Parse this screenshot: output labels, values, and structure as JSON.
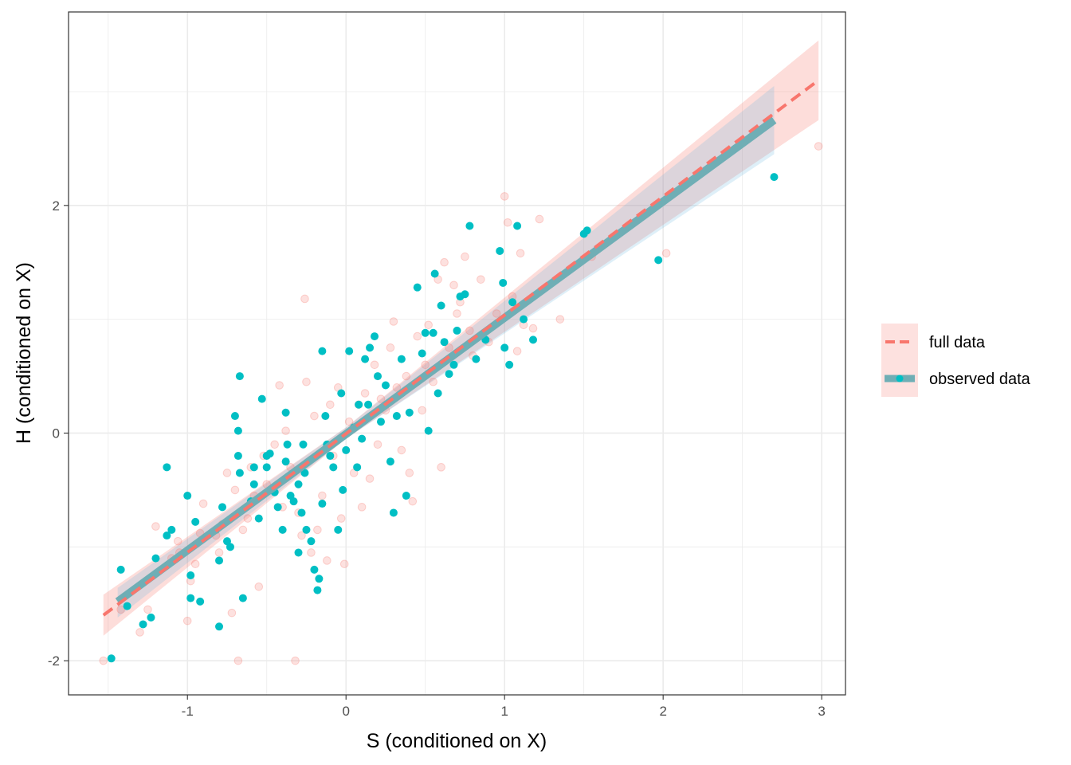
{
  "chart_data": {
    "type": "scatter",
    "xlabel": "S (conditioned on X)",
    "ylabel": "H (conditioned on X)",
    "xlim": [
      -1.75,
      3.15
    ],
    "ylim": [
      -2.3,
      3.7
    ],
    "x_ticks": [
      -1,
      0,
      1,
      2,
      3
    ],
    "y_ticks": [
      -2,
      0,
      2
    ],
    "x_tick_labels": [
      "-1",
      "0",
      "1",
      "2",
      "3"
    ],
    "y_tick_labels": [
      "-2",
      "0",
      "2"
    ],
    "grid": true,
    "legend_position": "right",
    "colors": {
      "full": "#F8766D",
      "observed": "#00BFC4",
      "observed_line": "#6FAEB5"
    },
    "series": [
      {
        "name": "full data",
        "style": "dashed line with confidence band, faint points",
        "line": {
          "x": [
            -1.53,
            2.98
          ],
          "y": [
            -1.6,
            3.1
          ]
        },
        "band": {
          "x": [
            -1.53,
            0.0,
            2.98
          ],
          "upper": [
            -1.42,
            0.05,
            3.45
          ],
          "lower": [
            -1.78,
            -0.05,
            2.75
          ]
        },
        "points": [
          [
            -1.53,
            -2.0
          ],
          [
            -1.42,
            -1.55
          ],
          [
            -1.3,
            -1.75
          ],
          [
            -1.25,
            -1.55
          ],
          [
            -1.2,
            -0.82
          ],
          [
            -1.1,
            -1.1
          ],
          [
            -1.05,
            -1.05
          ],
          [
            -1.06,
            -0.95
          ],
          [
            -1.0,
            -1.65
          ],
          [
            -0.98,
            -1.3
          ],
          [
            -0.95,
            -1.15
          ],
          [
            -0.92,
            -0.88
          ],
          [
            -0.9,
            -0.62
          ],
          [
            -0.82,
            -0.9
          ],
          [
            -0.8,
            -1.05
          ],
          [
            -0.78,
            -0.8
          ],
          [
            -0.75,
            -0.35
          ],
          [
            -0.72,
            -1.58
          ],
          [
            -0.7,
            -0.5
          ],
          [
            -0.68,
            -2.0
          ],
          [
            -0.65,
            -0.85
          ],
          [
            -0.62,
            -0.75
          ],
          [
            -0.6,
            -0.3
          ],
          [
            -0.58,
            -0.55
          ],
          [
            -0.55,
            -1.35
          ],
          [
            -0.52,
            -0.2
          ],
          [
            -0.5,
            -0.45
          ],
          [
            -0.45,
            -0.1
          ],
          [
            -0.42,
            0.42
          ],
          [
            -0.4,
            -0.65
          ],
          [
            -0.38,
            0.02
          ],
          [
            -0.35,
            -0.3
          ],
          [
            -0.32,
            -2.0
          ],
          [
            -0.3,
            -0.7
          ],
          [
            -0.28,
            -0.9
          ],
          [
            -0.26,
            1.18
          ],
          [
            -0.25,
            0.45
          ],
          [
            -0.22,
            -1.05
          ],
          [
            -0.2,
            0.15
          ],
          [
            -0.18,
            -0.85
          ],
          [
            -0.15,
            -0.55
          ],
          [
            -0.12,
            -1.12
          ],
          [
            -0.1,
            0.25
          ],
          [
            -0.08,
            -0.2
          ],
          [
            -0.05,
            0.4
          ],
          [
            -0.03,
            -0.75
          ],
          [
            -0.01,
            -1.15
          ],
          [
            0.02,
            0.1
          ],
          [
            0.05,
            -0.35
          ],
          [
            0.08,
            0.25
          ],
          [
            0.1,
            -0.65
          ],
          [
            0.12,
            0.35
          ],
          [
            0.15,
            -0.4
          ],
          [
            0.18,
            0.6
          ],
          [
            0.2,
            -0.1
          ],
          [
            0.22,
            0.3
          ],
          [
            0.25,
            0.2
          ],
          [
            0.28,
            0.75
          ],
          [
            0.3,
            0.98
          ],
          [
            0.32,
            0.4
          ],
          [
            0.35,
            -0.15
          ],
          [
            0.38,
            0.5
          ],
          [
            0.4,
            -0.35
          ],
          [
            0.42,
            -0.6
          ],
          [
            0.45,
            0.85
          ],
          [
            0.48,
            0.2
          ],
          [
            0.5,
            0.6
          ],
          [
            0.52,
            0.95
          ],
          [
            0.55,
            0.45
          ],
          [
            0.58,
            1.35
          ],
          [
            0.6,
            -0.3
          ],
          [
            0.62,
            1.5
          ],
          [
            0.65,
            0.75
          ],
          [
            0.68,
            1.3
          ],
          [
            0.7,
            1.05
          ],
          [
            0.72,
            1.15
          ],
          [
            0.75,
            1.55
          ],
          [
            0.78,
            0.9
          ],
          [
            0.8,
            0.68
          ],
          [
            0.85,
            1.35
          ],
          [
            0.9,
            0.8
          ],
          [
            0.95,
            1.05
          ],
          [
            1.0,
            2.08
          ],
          [
            1.02,
            1.85
          ],
          [
            1.05,
            1.2
          ],
          [
            1.08,
            0.72
          ],
          [
            1.1,
            1.58
          ],
          [
            1.12,
            0.95
          ],
          [
            1.18,
            0.92
          ],
          [
            1.22,
            1.88
          ],
          [
            1.35,
            1.0
          ],
          [
            1.55,
            1.55
          ],
          [
            2.02,
            1.58
          ],
          [
            2.98,
            2.52
          ]
        ]
      },
      {
        "name": "observed data",
        "style": "solid thick line with confidence band, solid points",
        "line": {
          "x": [
            -1.44,
            2.7
          ],
          "y": [
            -1.48,
            2.75
          ]
        },
        "band": {
          "x": [
            -1.44,
            0.0,
            2.7
          ],
          "upper": [
            -1.36,
            0.05,
            3.05
          ],
          "lower": [
            -1.62,
            -0.05,
            2.45
          ]
        },
        "points": [
          [
            -1.48,
            -1.98
          ],
          [
            -1.42,
            -1.2
          ],
          [
            -1.38,
            -1.52
          ],
          [
            -1.28,
            -1.68
          ],
          [
            -1.23,
            -1.62
          ],
          [
            -1.2,
            -1.1
          ],
          [
            -1.13,
            -0.3
          ],
          [
            -1.13,
            -0.9
          ],
          [
            -1.1,
            -0.85
          ],
          [
            -1.0,
            -0.55
          ],
          [
            -0.98,
            -1.25
          ],
          [
            -0.98,
            -1.45
          ],
          [
            -0.95,
            -0.78
          ],
          [
            -0.92,
            -1.48
          ],
          [
            -0.82,
            -0.85
          ],
          [
            -0.8,
            -1.7
          ],
          [
            -0.8,
            -1.12
          ],
          [
            -0.78,
            -0.65
          ],
          [
            -0.75,
            -0.95
          ],
          [
            -0.73,
            -1.0
          ],
          [
            -0.7,
            0.15
          ],
          [
            -0.68,
            -0.2
          ],
          [
            -0.68,
            0.02
          ],
          [
            -0.67,
            0.5
          ],
          [
            -0.67,
            -0.35
          ],
          [
            -0.65,
            -1.45
          ],
          [
            -0.6,
            -0.6
          ],
          [
            -0.58,
            -0.45
          ],
          [
            -0.58,
            -0.3
          ],
          [
            -0.55,
            -0.75
          ],
          [
            -0.53,
            0.3
          ],
          [
            -0.5,
            -0.3
          ],
          [
            -0.5,
            -0.2
          ],
          [
            -0.48,
            -0.18
          ],
          [
            -0.45,
            -0.52
          ],
          [
            -0.43,
            -0.65
          ],
          [
            -0.4,
            -0.85
          ],
          [
            -0.38,
            -0.25
          ],
          [
            -0.38,
            0.18
          ],
          [
            -0.37,
            -0.1
          ],
          [
            -0.35,
            -0.55
          ],
          [
            -0.33,
            -0.6
          ],
          [
            -0.3,
            -0.45
          ],
          [
            -0.3,
            -1.05
          ],
          [
            -0.28,
            -0.7
          ],
          [
            -0.27,
            -0.1
          ],
          [
            -0.26,
            -0.35
          ],
          [
            -0.25,
            -0.85
          ],
          [
            -0.22,
            -0.95
          ],
          [
            -0.2,
            -1.2
          ],
          [
            -0.18,
            -1.38
          ],
          [
            -0.17,
            -1.28
          ],
          [
            -0.15,
            -0.62
          ],
          [
            -0.15,
            0.72
          ],
          [
            -0.13,
            0.15
          ],
          [
            -0.12,
            -0.1
          ],
          [
            -0.1,
            -0.2
          ],
          [
            -0.08,
            -0.3
          ],
          [
            -0.05,
            -0.85
          ],
          [
            -0.03,
            0.35
          ],
          [
            -0.02,
            -0.5
          ],
          [
            0.0,
            -0.15
          ],
          [
            0.02,
            0.72
          ],
          [
            0.05,
            0.05
          ],
          [
            0.07,
            -0.3
          ],
          [
            0.08,
            0.25
          ],
          [
            0.1,
            -0.05
          ],
          [
            0.12,
            0.65
          ],
          [
            0.14,
            0.25
          ],
          [
            0.15,
            0.75
          ],
          [
            0.18,
            0.85
          ],
          [
            0.2,
            0.5
          ],
          [
            0.22,
            0.1
          ],
          [
            0.25,
            0.42
          ],
          [
            0.28,
            -0.25
          ],
          [
            0.3,
            -0.7
          ],
          [
            0.32,
            0.15
          ],
          [
            0.35,
            0.65
          ],
          [
            0.38,
            -0.55
          ],
          [
            0.4,
            0.18
          ],
          [
            0.45,
            1.28
          ],
          [
            0.48,
            0.7
          ],
          [
            0.5,
            0.88
          ],
          [
            0.52,
            0.02
          ],
          [
            0.55,
            0.88
          ],
          [
            0.56,
            1.4
          ],
          [
            0.58,
            0.35
          ],
          [
            0.6,
            1.12
          ],
          [
            0.62,
            0.8
          ],
          [
            0.65,
            0.52
          ],
          [
            0.68,
            0.6
          ],
          [
            0.7,
            0.9
          ],
          [
            0.72,
            1.2
          ],
          [
            0.75,
            1.22
          ],
          [
            0.78,
            1.82
          ],
          [
            0.82,
            0.65
          ],
          [
            0.88,
            0.82
          ],
          [
            0.97,
            1.6
          ],
          [
            0.99,
            1.32
          ],
          [
            1.0,
            0.75
          ],
          [
            1.03,
            0.6
          ],
          [
            1.05,
            1.15
          ],
          [
            1.08,
            1.82
          ],
          [
            1.12,
            1.0
          ],
          [
            1.18,
            0.82
          ],
          [
            1.5,
            1.75
          ],
          [
            1.52,
            1.78
          ],
          [
            1.97,
            1.52
          ],
          [
            2.7,
            2.25
          ]
        ]
      }
    ]
  },
  "legend": {
    "items": [
      {
        "label": "full data"
      },
      {
        "label": "observed data"
      }
    ]
  }
}
